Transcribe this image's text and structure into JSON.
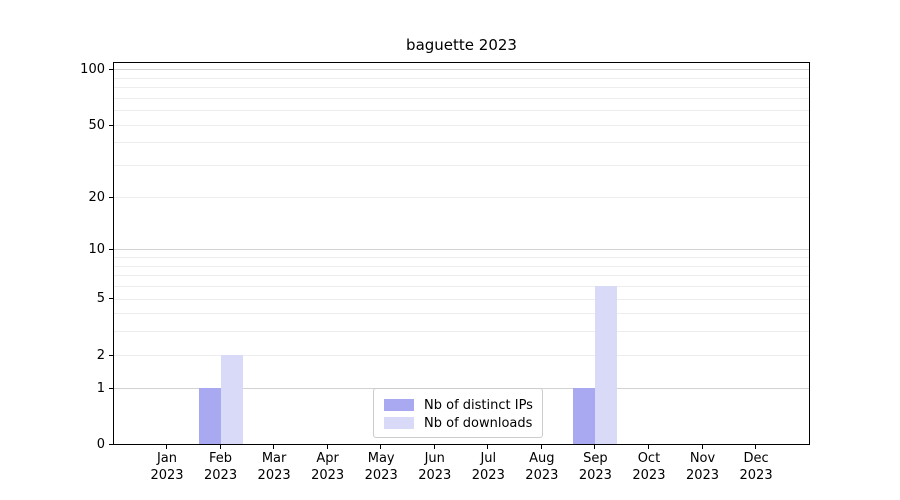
{
  "title": "baguette 2023",
  "chart_data": {
    "type": "bar",
    "title": "baguette 2023",
    "categories": [
      "Jan",
      "Feb",
      "Mar",
      "Apr",
      "May",
      "Jun",
      "Jul",
      "Aug",
      "Sep",
      "Oct",
      "Nov",
      "Dec"
    ],
    "year_label": "2023",
    "series": [
      {
        "name": "Nb of distinct IPs",
        "color": "#a9a9f1",
        "values": [
          0,
          1,
          0,
          0,
          0,
          0,
          0,
          0,
          1,
          0,
          0,
          0
        ]
      },
      {
        "name": "Nb of downloads",
        "color": "#d9d9f8",
        "values": [
          0,
          2,
          0,
          0,
          0,
          0,
          0,
          0,
          6,
          0,
          0,
          0
        ]
      }
    ],
    "xlabel": "",
    "ylabel": "",
    "yscale": "log1p",
    "yticks": [
      0,
      1,
      2,
      5,
      10,
      20,
      50,
      100
    ],
    "ylim": [
      0,
      111
    ],
    "grid": "horizontal; major lines at 1, 10, 100; minor lines at 2-9, 20-90",
    "legend_position": "lower center, inside plot"
  },
  "colors": {
    "grid_major": "#d2d2d2",
    "grid_minor": "#ededed",
    "axis": "#000000"
  }
}
